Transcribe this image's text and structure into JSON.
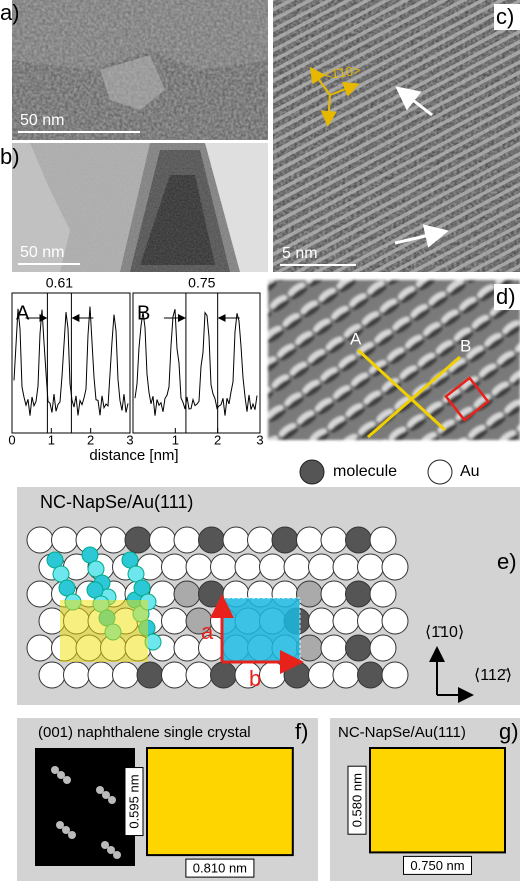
{
  "panels": {
    "a": {
      "label": "a)",
      "scale_bar": "50 nm"
    },
    "b": {
      "label": "b)",
      "scale_bar": "50 nm"
    },
    "c": {
      "label": "c)",
      "scale_bar": "5 nm",
      "direction": "<1̄10>"
    },
    "d": {
      "label": "d)",
      "line_a": "A",
      "line_b": "B"
    },
    "profiles": {
      "a": {
        "label": "A",
        "spacing": 0.61
      },
      "b": {
        "label": "B",
        "spacing": 0.75
      },
      "xlim": [
        0,
        3
      ],
      "xticks": [
        0,
        1,
        2,
        3
      ],
      "xlabel": "distance [nm]"
    },
    "legend": {
      "molecule": "molecule",
      "au": "Au"
    },
    "e": {
      "label": "e)",
      "title": "NC-NapSe/Au(111)",
      "vector_a": "a",
      "vector_b": "b",
      "axis_vertical": "⟨1̄10⟩",
      "axis_horizontal": "⟨112̄⟩"
    },
    "f": {
      "label": "f)",
      "title": "(001) naphthalene single crystal",
      "height": {
        "value": 0.595,
        "label": "0.595 nm"
      },
      "width": {
        "value": 0.81,
        "label": "0.810 nm"
      }
    },
    "g": {
      "label": "g)",
      "title": "NC-NapSe/Au(111)",
      "height": {
        "value": 0.58,
        "label": "0.580 nm"
      },
      "width": {
        "value": 0.75,
        "label": "0.750 nm"
      }
    }
  }
}
